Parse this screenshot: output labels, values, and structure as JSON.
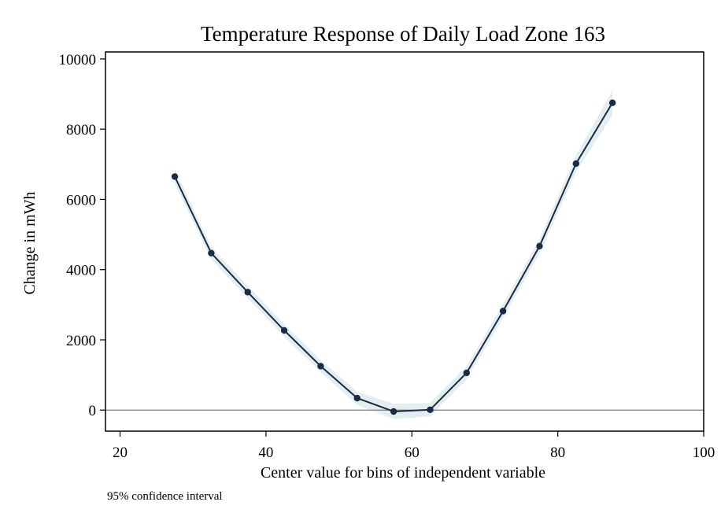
{
  "chart_data": {
    "type": "line",
    "title": "Temperature Response of Daily Load Zone 163",
    "xlabel": "Center value for bins of independent variable",
    "ylabel": "Change in mWh",
    "note": "95% confidence interval",
    "xlim": [
      18,
      100
    ],
    "ylim": [
      -600,
      10200
    ],
    "x_ticks": [
      20,
      40,
      60,
      80,
      100
    ],
    "y_ticks": [
      0,
      2000,
      4000,
      6000,
      8000,
      10000
    ],
    "reference_line_y": 0,
    "grid": false,
    "series": [
      {
        "x": [
          27.5,
          32.5,
          37.5,
          42.5,
          47.5,
          52.5,
          57.5,
          62.5,
          67.5,
          72.5,
          77.5,
          82.5,
          87.5
        ],
        "y": [
          6650,
          4470,
          3360,
          2270,
          1250,
          340,
          -40,
          10,
          1060,
          2820,
          4670,
          7020,
          8750
        ],
        "ci_low": [
          6450,
          4290,
          3180,
          2090,
          1080,
          150,
          -260,
          -180,
          870,
          2620,
          4460,
          6780,
          8400
        ],
        "ci_high": [
          6850,
          4650,
          3540,
          2450,
          1420,
          530,
          180,
          200,
          1250,
          3020,
          4880,
          7260,
          9100
        ]
      }
    ],
    "colors": {
      "line": "#1c2a44",
      "ci_band": "#e3eef0",
      "reference": "#7f7f7f",
      "frame": "#000000"
    }
  }
}
